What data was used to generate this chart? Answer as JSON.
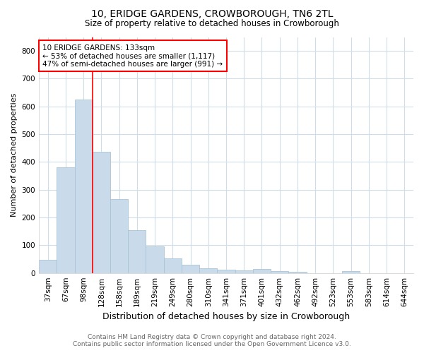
{
  "title": "10, ERIDGE GARDENS, CROWBOROUGH, TN6 2TL",
  "subtitle": "Size of property relative to detached houses in Crowborough",
  "xlabel": "Distribution of detached houses by size in Crowborough",
  "ylabel": "Number of detached properties",
  "footer1": "Contains HM Land Registry data © Crown copyright and database right 2024.",
  "footer2": "Contains public sector information licensed under the Open Government Licence v3.0.",
  "annotation_line1": "10 ERIDGE GARDENS: 133sqm",
  "annotation_line2": "← 53% of detached houses are smaller (1,117)",
  "annotation_line3": "47% of semi-detached houses are larger (991) →",
  "bar_color": "#c9daea",
  "bar_edge_color": "#a8c4d8",
  "categories": [
    "37sqm",
    "67sqm",
    "98sqm",
    "128sqm",
    "158sqm",
    "189sqm",
    "219sqm",
    "249sqm",
    "280sqm",
    "310sqm",
    "341sqm",
    "371sqm",
    "401sqm",
    "432sqm",
    "462sqm",
    "492sqm",
    "523sqm",
    "553sqm",
    "583sqm",
    "614sqm",
    "644sqm"
  ],
  "values": [
    47,
    380,
    625,
    437,
    267,
    155,
    96,
    53,
    30,
    17,
    11,
    10,
    15,
    8,
    4,
    0,
    0,
    7,
    0,
    0,
    0
  ],
  "red_line_index": 2.5,
  "ylim": [
    0,
    850
  ],
  "yticks": [
    0,
    100,
    200,
    300,
    400,
    500,
    600,
    700,
    800
  ],
  "grid_color": "#d0dce8",
  "background_color": "#ffffff",
  "figsize": [
    6.0,
    5.0
  ],
  "dpi": 100,
  "title_fontsize": 10,
  "subtitle_fontsize": 8.5,
  "xlabel_fontsize": 9,
  "ylabel_fontsize": 8,
  "tick_fontsize": 7.5,
  "footer_fontsize": 6.5,
  "annotation_fontsize": 7.5
}
